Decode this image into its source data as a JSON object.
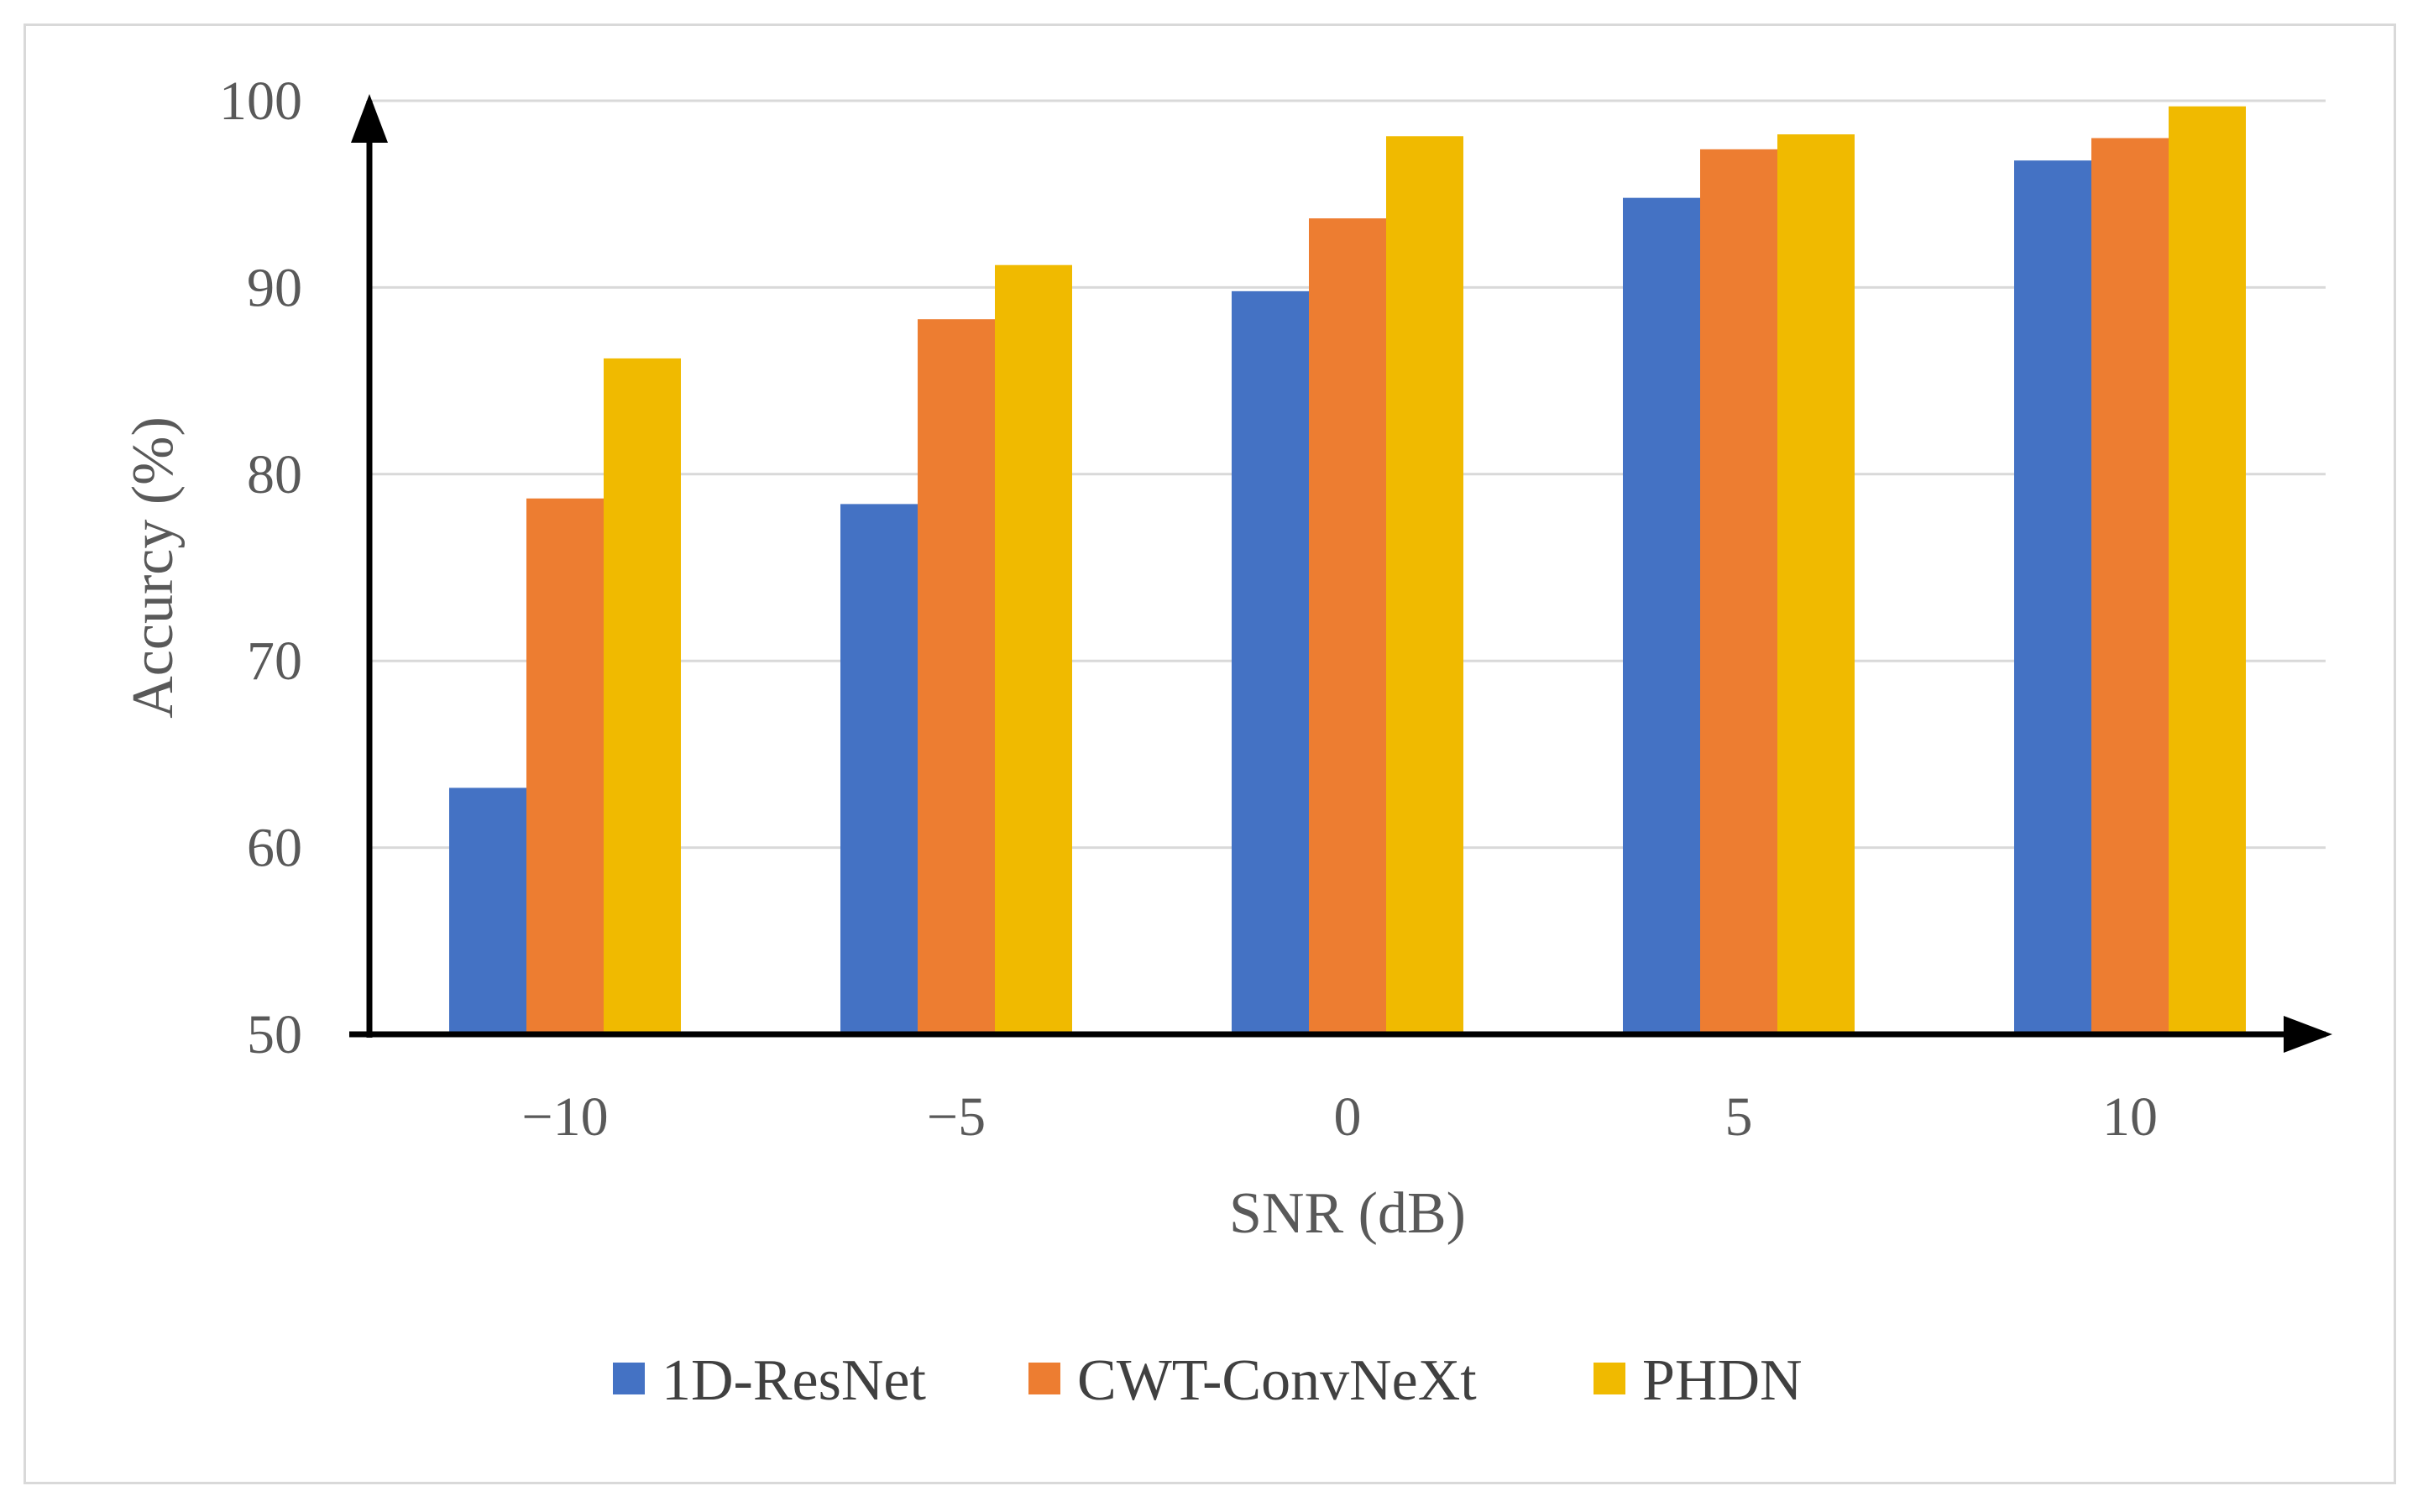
{
  "chart_data": {
    "type": "bar",
    "title": "",
    "xlabel": "SNR (dB)",
    "ylabel": "Accurcy (%)",
    "categories": [
      "−10",
      "−5",
      "0",
      "5",
      "10"
    ],
    "yticks": [
      "50",
      "60",
      "70",
      "80",
      "90",
      "100"
    ],
    "ylim": [
      50,
      100
    ],
    "grid": true,
    "legend_position": "bottom",
    "series": [
      {
        "name": "1D-ResNet",
        "color": "#4472C4",
        "values": [
          63.2,
          78.4,
          89.8,
          94.8,
          96.8
        ]
      },
      {
        "name": "CWT-ConvNeXt",
        "color": "#ED7D31",
        "values": [
          78.7,
          88.3,
          93.7,
          97.4,
          98.0
        ]
      },
      {
        "name": "PHDN",
        "color": "#F0BA00",
        "values": [
          86.2,
          91.2,
          98.1,
          98.2,
          99.7
        ]
      }
    ]
  }
}
